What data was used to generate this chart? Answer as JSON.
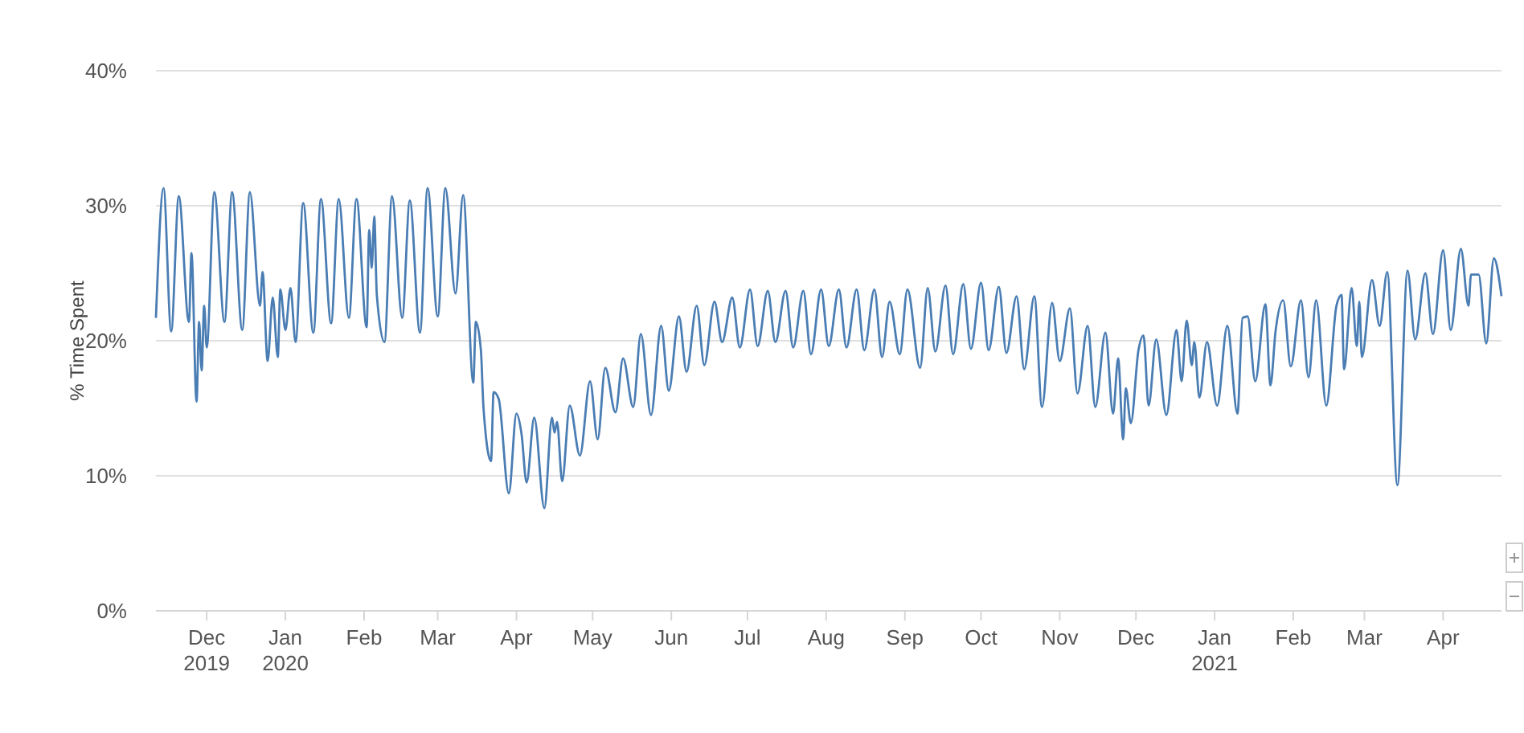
{
  "chart_data": {
    "type": "line",
    "ylabel": "% Time Spent",
    "xlim": [
      "2019-11-11",
      "2021-04-24"
    ],
    "xticks": [
      {
        "value": "2019-12-01",
        "label": "Dec 2019"
      },
      {
        "value": "2020-01-01",
        "label": "Jan 2020"
      },
      {
        "value": "2020-02-01",
        "label": "Feb"
      },
      {
        "value": "2020-03-01",
        "label": "Mar"
      },
      {
        "value": "2020-04-01",
        "label": "Apr"
      },
      {
        "value": "2020-05-01",
        "label": "May"
      },
      {
        "value": "2020-06-01",
        "label": "Jun"
      },
      {
        "value": "2020-07-01",
        "label": "Jul"
      },
      {
        "value": "2020-08-01",
        "label": "Aug"
      },
      {
        "value": "2020-09-01",
        "label": "Sep"
      },
      {
        "value": "2020-10-01",
        "label": "Oct"
      },
      {
        "value": "2020-11-01",
        "label": "Nov"
      },
      {
        "value": "2020-12-01",
        "label": "Dec"
      },
      {
        "value": "2021-01-01",
        "label": "Jan 2021"
      },
      {
        "value": "2021-02-01",
        "label": "Feb"
      },
      {
        "value": "2021-03-01",
        "label": "Mar"
      },
      {
        "value": "2021-04-01",
        "label": "Apr"
      }
    ],
    "ylim": [
      0,
      40
    ],
    "yticks": [
      {
        "value": 0,
        "label": "0%"
      },
      {
        "value": 10,
        "label": "10%"
      },
      {
        "value": 20,
        "label": "20%"
      },
      {
        "value": 30,
        "label": "30%"
      },
      {
        "value": 40,
        "label": "40%"
      }
    ],
    "grid": "y",
    "marker": "none",
    "line_style": "solid",
    "series": [
      {
        "color": "#4a7db3",
        "x": [
          "2019-11-11",
          "2019-11-14",
          "2019-11-17",
          "2019-11-20",
          "2019-11-24",
          "2019-11-25",
          "2019-11-27",
          "2019-11-28",
          "2019-11-29",
          "2019-11-30",
          "2019-12-01",
          "2019-12-04",
          "2019-12-08",
          "2019-12-11",
          "2019-12-15",
          "2019-12-18",
          "2019-12-22",
          "2019-12-23",
          "2019-12-25",
          "2019-12-27",
          "2019-12-29",
          "2019-12-30",
          "2020-01-01",
          "2020-01-03",
          "2020-01-05",
          "2020-01-08",
          "2020-01-12",
          "2020-01-15",
          "2020-01-19",
          "2020-01-22",
          "2020-01-26",
          "2020-01-29",
          "2020-02-02",
          "2020-02-03",
          "2020-02-04",
          "2020-02-05",
          "2020-02-06",
          "2020-02-09",
          "2020-02-12",
          "2020-02-16",
          "2020-02-19",
          "2020-02-23",
          "2020-02-26",
          "2020-03-01",
          "2020-03-04",
          "2020-03-08",
          "2020-03-11",
          "2020-03-15",
          "2020-03-16",
          "2020-03-18",
          "2020-03-19",
          "2020-03-22",
          "2020-03-23",
          "2020-03-25",
          "2020-03-29",
          "2020-04-01",
          "2020-04-03",
          "2020-04-05",
          "2020-04-08",
          "2020-04-12",
          "2020-04-15",
          "2020-04-16",
          "2020-04-17",
          "2020-04-19",
          "2020-04-22",
          "2020-04-26",
          "2020-04-30",
          "2020-05-03",
          "2020-05-06",
          "2020-05-10",
          "2020-05-13",
          "2020-05-17",
          "2020-05-20",
          "2020-05-24",
          "2020-05-28",
          "2020-05-31",
          "2020-06-04",
          "2020-06-07",
          "2020-06-11",
          "2020-06-14",
          "2020-06-18",
          "2020-06-21",
          "2020-06-25",
          "2020-06-28",
          "2020-07-02",
          "2020-07-05",
          "2020-07-09",
          "2020-07-12",
          "2020-07-16",
          "2020-07-19",
          "2020-07-23",
          "2020-07-26",
          "2020-07-30",
          "2020-08-02",
          "2020-08-06",
          "2020-08-09",
          "2020-08-13",
          "2020-08-16",
          "2020-08-20",
          "2020-08-23",
          "2020-08-26",
          "2020-08-30",
          "2020-09-02",
          "2020-09-07",
          "2020-09-10",
          "2020-09-13",
          "2020-09-17",
          "2020-09-20",
          "2020-09-24",
          "2020-09-27",
          "2020-10-01",
          "2020-10-04",
          "2020-10-08",
          "2020-10-11",
          "2020-10-15",
          "2020-10-18",
          "2020-10-22",
          "2020-10-25",
          "2020-10-29",
          "2020-11-01",
          "2020-11-05",
          "2020-11-08",
          "2020-11-12",
          "2020-11-15",
          "2020-11-19",
          "2020-11-22",
          "2020-11-24",
          "2020-11-26",
          "2020-11-27",
          "2020-11-29",
          "2020-12-02",
          "2020-12-04",
          "2020-12-06",
          "2020-12-09",
          "2020-12-13",
          "2020-12-17",
          "2020-12-19",
          "2020-12-21",
          "2020-12-23",
          "2020-12-24",
          "2020-12-26",
          "2020-12-29",
          "2021-01-02",
          "2021-01-06",
          "2021-01-10",
          "2021-01-12",
          "2021-01-14",
          "2021-01-17",
          "2021-01-21",
          "2021-01-23",
          "2021-01-25",
          "2021-01-28",
          "2021-01-31",
          "2021-02-04",
          "2021-02-07",
          "2021-02-10",
          "2021-02-14",
          "2021-02-18",
          "2021-02-20",
          "2021-02-21",
          "2021-02-24",
          "2021-02-26",
          "2021-02-27",
          "2021-02-28",
          "2021-03-04",
          "2021-03-07",
          "2021-03-10",
          "2021-03-14",
          "2021-03-18",
          "2021-03-21",
          "2021-03-25",
          "2021-03-28",
          "2021-04-01",
          "2021-04-04",
          "2021-04-08",
          "2021-04-11",
          "2021-04-12",
          "2021-04-15",
          "2021-04-18",
          "2021-04-21",
          "2021-04-24"
        ],
        "values": [
          21.7,
          31.3,
          20.7,
          30.7,
          21.4,
          26.5,
          15.5,
          21.4,
          17.8,
          22.6,
          19.5,
          31.0,
          21.4,
          31.0,
          20.8,
          31.0,
          22.6,
          25.1,
          18.5,
          23.2,
          18.8,
          23.8,
          20.8,
          23.9,
          19.9,
          30.2,
          20.6,
          30.5,
          21.3,
          30.5,
          21.7,
          30.5,
          21.0,
          28.2,
          25.4,
          29.2,
          23.4,
          19.9,
          30.7,
          21.7,
          30.4,
          20.6,
          31.3,
          21.8,
          31.3,
          23.5,
          30.8,
          16.9,
          21.4,
          19.3,
          15.1,
          11.1,
          16.2,
          15.7,
          8.7,
          14.6,
          13.1,
          9.5,
          14.3,
          7.6,
          14.3,
          13.2,
          14.0,
          9.6,
          15.2,
          11.5,
          17.0,
          12.7,
          18.0,
          14.7,
          18.7,
          15.1,
          20.5,
          14.5,
          21.1,
          16.3,
          21.8,
          17.7,
          22.6,
          18.2,
          22.9,
          19.9,
          23.2,
          19.5,
          23.8,
          19.6,
          23.7,
          19.9,
          23.7,
          19.5,
          23.7,
          19.0,
          23.8,
          19.6,
          23.8,
          19.5,
          23.8,
          19.3,
          23.8,
          18.8,
          22.9,
          19.0,
          23.8,
          18.0,
          23.9,
          19.2,
          24.1,
          19.0,
          24.2,
          19.4,
          24.3,
          19.3,
          24.0,
          19.1,
          23.3,
          17.9,
          23.3,
          15.1,
          22.8,
          18.5,
          22.4,
          16.1,
          21.1,
          15.1,
          20.6,
          14.6,
          18.7,
          12.7,
          16.5,
          13.9,
          19.3,
          20.4,
          15.2,
          20.1,
          14.5,
          20.8,
          17.0,
          21.5,
          18.2,
          19.9,
          15.8,
          19.9,
          15.2,
          21.1,
          14.6,
          21.7,
          21.8,
          17.0,
          22.7,
          16.7,
          20.7,
          23.0,
          18.1,
          23.0,
          17.3,
          23.0,
          15.2,
          22.6,
          23.4,
          17.9,
          23.9,
          19.6,
          22.9,
          18.8,
          24.5,
          21.1,
          25.1,
          9.3,
          25.2,
          20.1,
          25.0,
          20.5,
          26.7,
          20.8,
          26.8,
          22.6,
          24.9,
          24.9,
          19.8,
          26.1,
          23.3
        ]
      }
    ]
  }
}
